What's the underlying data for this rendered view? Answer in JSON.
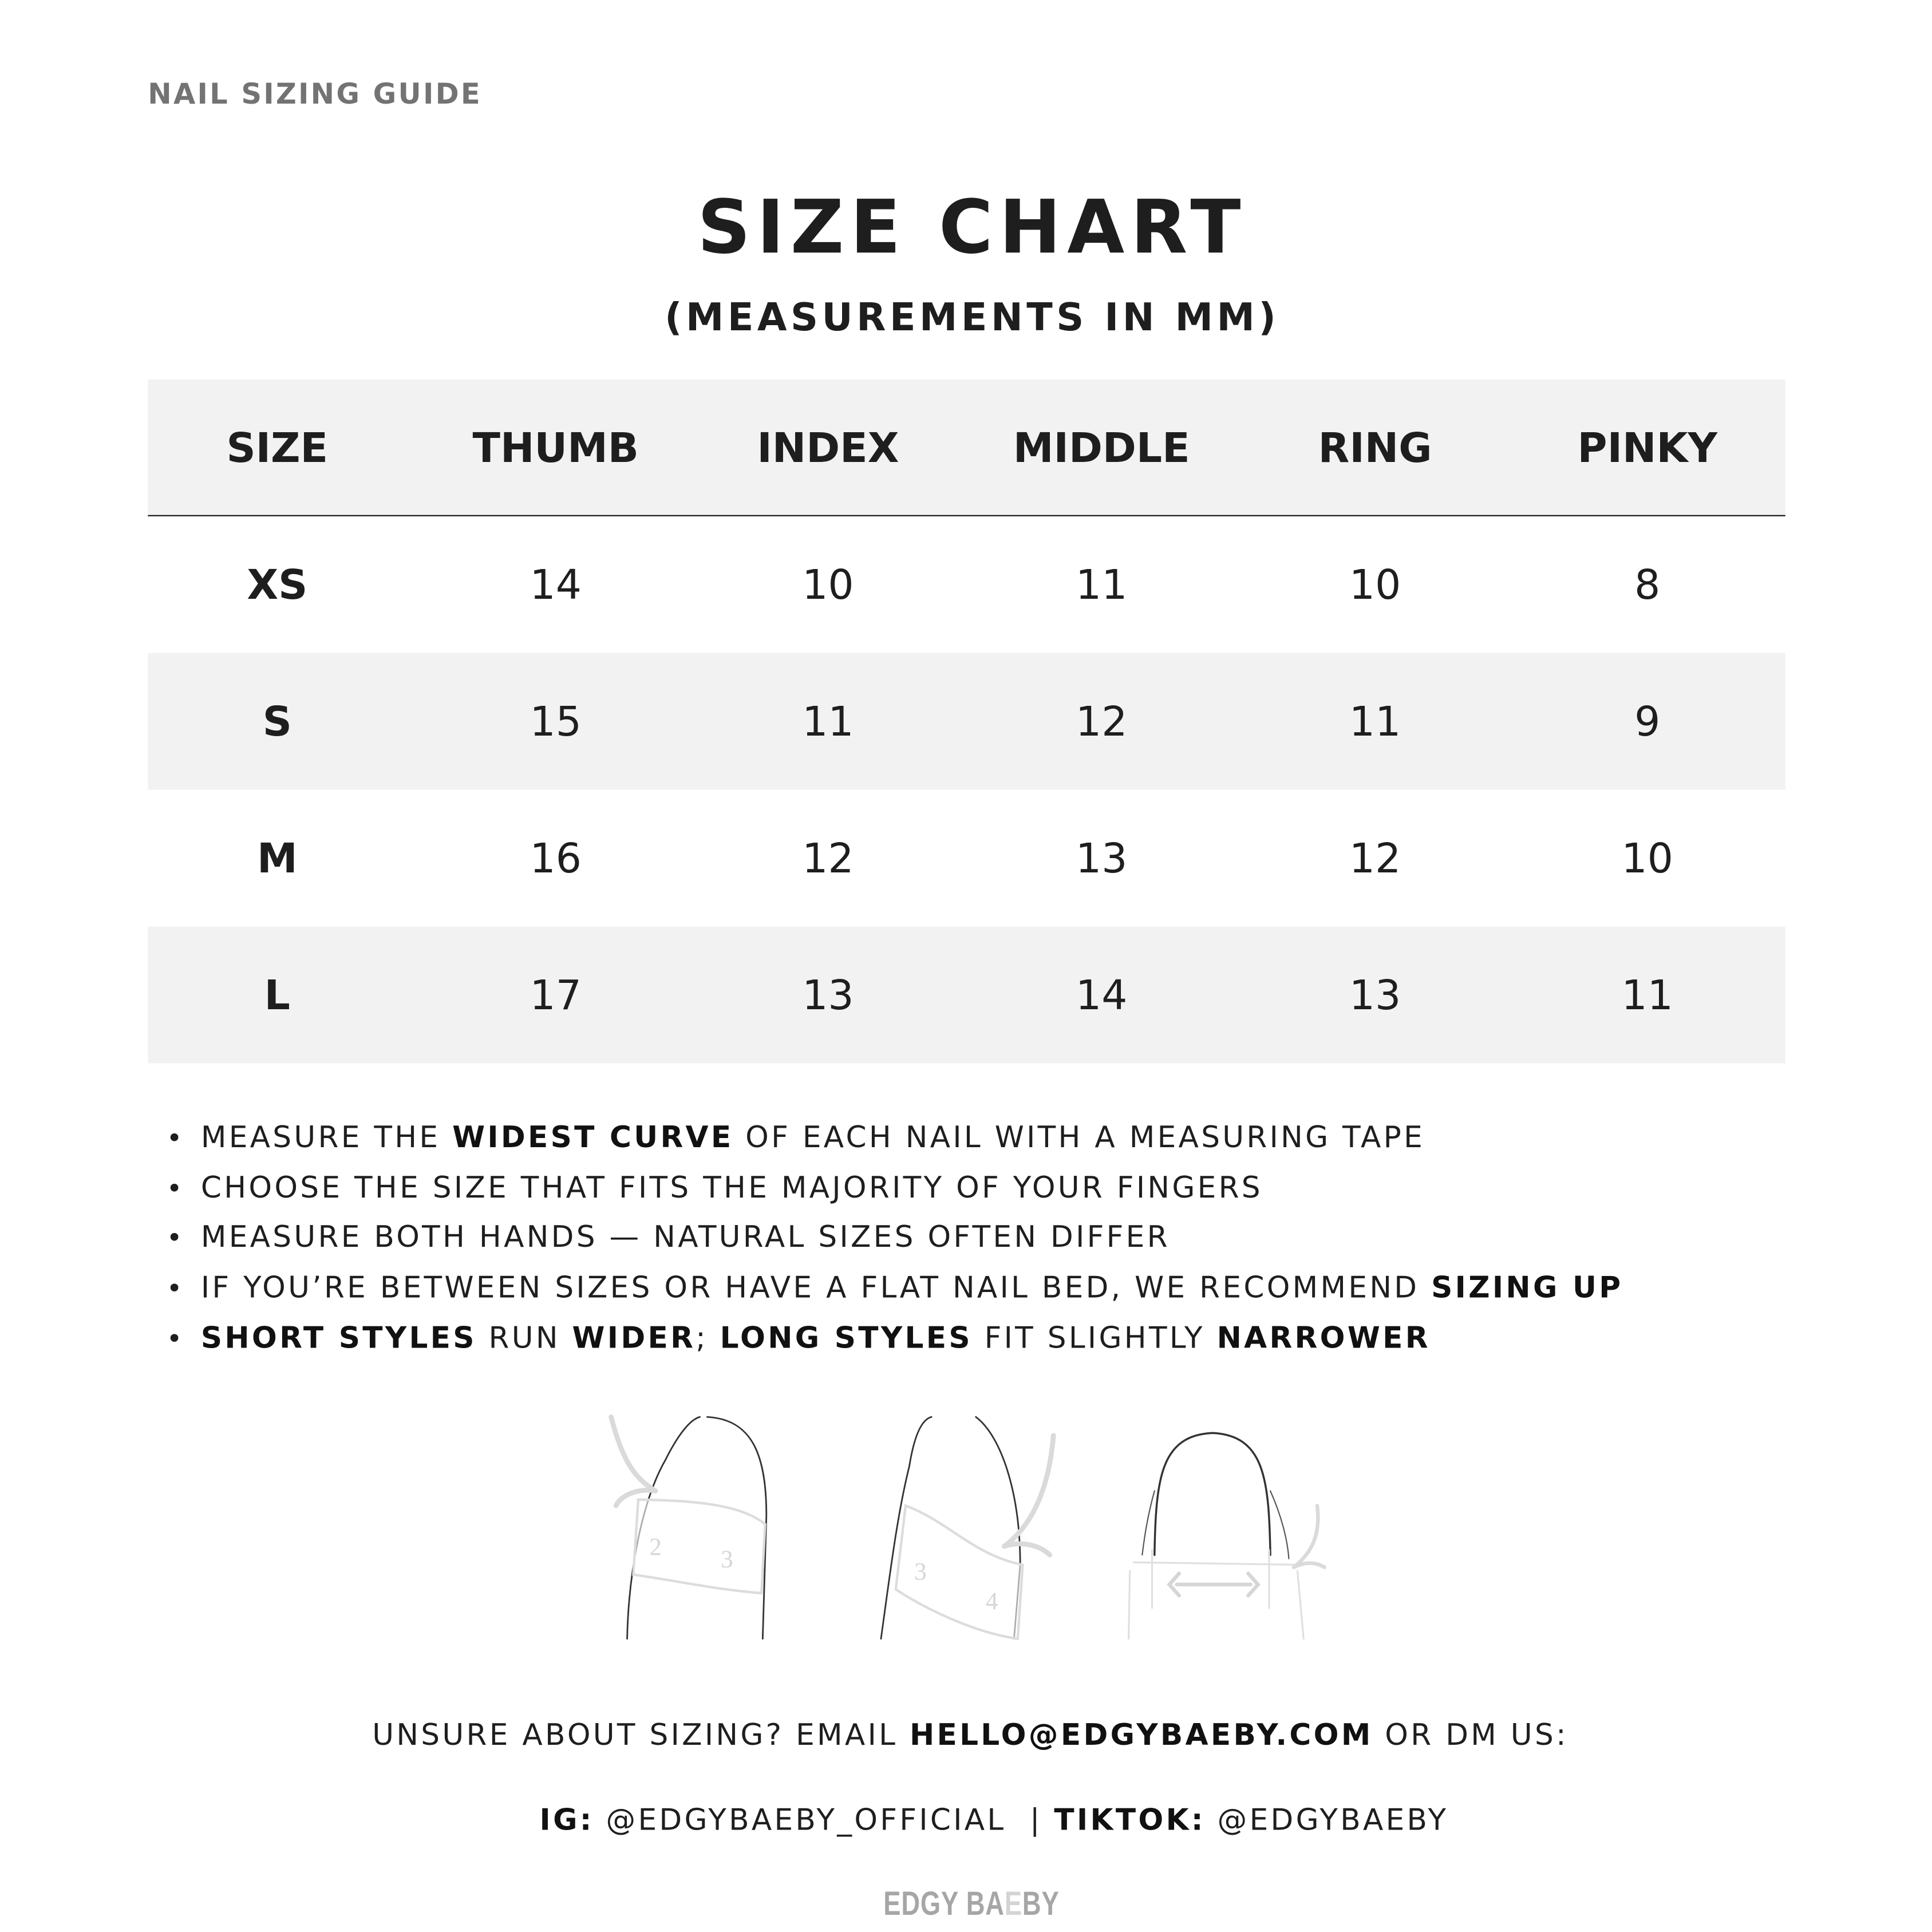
{
  "kicker": "NAIL SIZING GUIDE",
  "title": "SIZE CHART",
  "subtitle": "(MEASUREMENTS IN MM)",
  "table": {
    "headers": [
      "SIZE",
      "THUMB",
      "INDEX",
      "MIDDLE",
      "RING",
      "PINKY"
    ],
    "rows": [
      [
        "XS",
        "14",
        "10",
        "11",
        "10",
        "8"
      ],
      [
        "S",
        "15",
        "11",
        "12",
        "11",
        "9"
      ],
      [
        "M",
        "16",
        "12",
        "13",
        "12",
        "10"
      ],
      [
        "L",
        "17",
        "13",
        "14",
        "13",
        "11"
      ]
    ]
  },
  "tips": [
    [
      {
        "t": "MEASURE THE "
      },
      {
        "t": "WIDEST CURVE",
        "b": true
      },
      {
        "t": " OF EACH NAIL WITH A MEASURING TAPE"
      }
    ],
    [
      {
        "t": "CHOOSE THE SIZE THAT FITS THE MAJORITY OF YOUR FINGERS"
      }
    ],
    [
      {
        "t": "MEASURE BOTH HANDS — NATURAL SIZES OFTEN DIFFER"
      }
    ],
    [
      {
        "t": "IF YOU’RE BETWEEN SIZES OR HAVE A FLAT NAIL BED, WE RECOMMEND "
      },
      {
        "t": "SIZING UP",
        "b": true
      }
    ],
    [
      {
        "t": "SHORT STYLES",
        "b": true
      },
      {
        "t": " RUN "
      },
      {
        "t": "WIDER",
        "b": true
      },
      {
        "t": "; "
      },
      {
        "t": "LONG STYLES",
        "b": true
      },
      {
        "t": " FIT SLIGHTLY "
      },
      {
        "t": "NARROWER",
        "b": true
      }
    ]
  ],
  "illustration": {
    "tape_numbers": [
      "2",
      "3",
      "3",
      "4"
    ]
  },
  "contact": {
    "line1_prefix": "UNSURE ABOUT SIZING? EMAIL ",
    "email": "HELLO@EDGYBAEBY.COM",
    "line1_suffix": " OR DM US:",
    "ig_label": "IG:",
    "ig_handle": " @EDGYBAEBY_OFFICIAL  ",
    "sep": "| ",
    "tiktok_label": "TIKTOK:",
    "tiktok_handle": " @EDGYBAEBY"
  },
  "logo": {
    "text": "EDGY BAEBY",
    "part1": "EDGY BA",
    "part2": "E",
    "part3": "BY"
  },
  "colors": {
    "row_gray": "#f2f2f2",
    "text": "#1e1e1e",
    "kicker": "#737373",
    "logo": "#a6a6a6"
  }
}
